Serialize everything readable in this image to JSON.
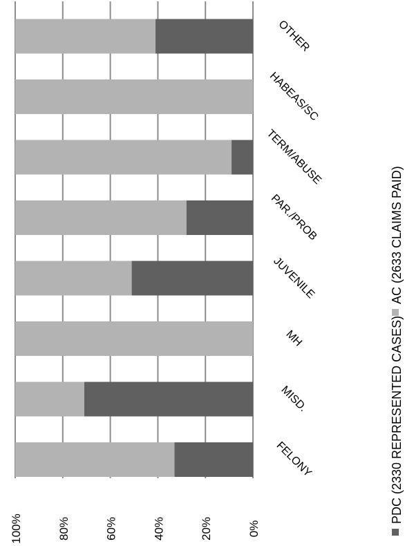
{
  "chart_data": {
    "type": "bar",
    "stacked": true,
    "orientation": "vertical-100-percent",
    "rotated": "image rotated 90° clockwise",
    "categories": [
      "FELONY",
      "MISD.",
      "MH",
      "JUVENILE",
      "PAR./PROB",
      "TERM/ABUSE",
      "HABEAS/SC",
      "OTHER"
    ],
    "series": [
      {
        "name": "PDC (2330 REPRESENTED CASES)",
        "color": "#606060",
        "values": [
          33,
          71,
          0,
          51,
          28,
          9,
          0,
          41
        ]
      },
      {
        "name": "AC (2633 CLAIMS PAID)",
        "color": "#b3b3b3",
        "values": [
          67,
          29,
          100,
          49,
          72,
          91,
          100,
          59
        ]
      }
    ],
    "yticks": [
      "0%",
      "20%",
      "40%",
      "60%",
      "80%",
      "100%"
    ],
    "ylim": [
      0,
      100
    ],
    "grid": true,
    "legend": "bottom"
  }
}
